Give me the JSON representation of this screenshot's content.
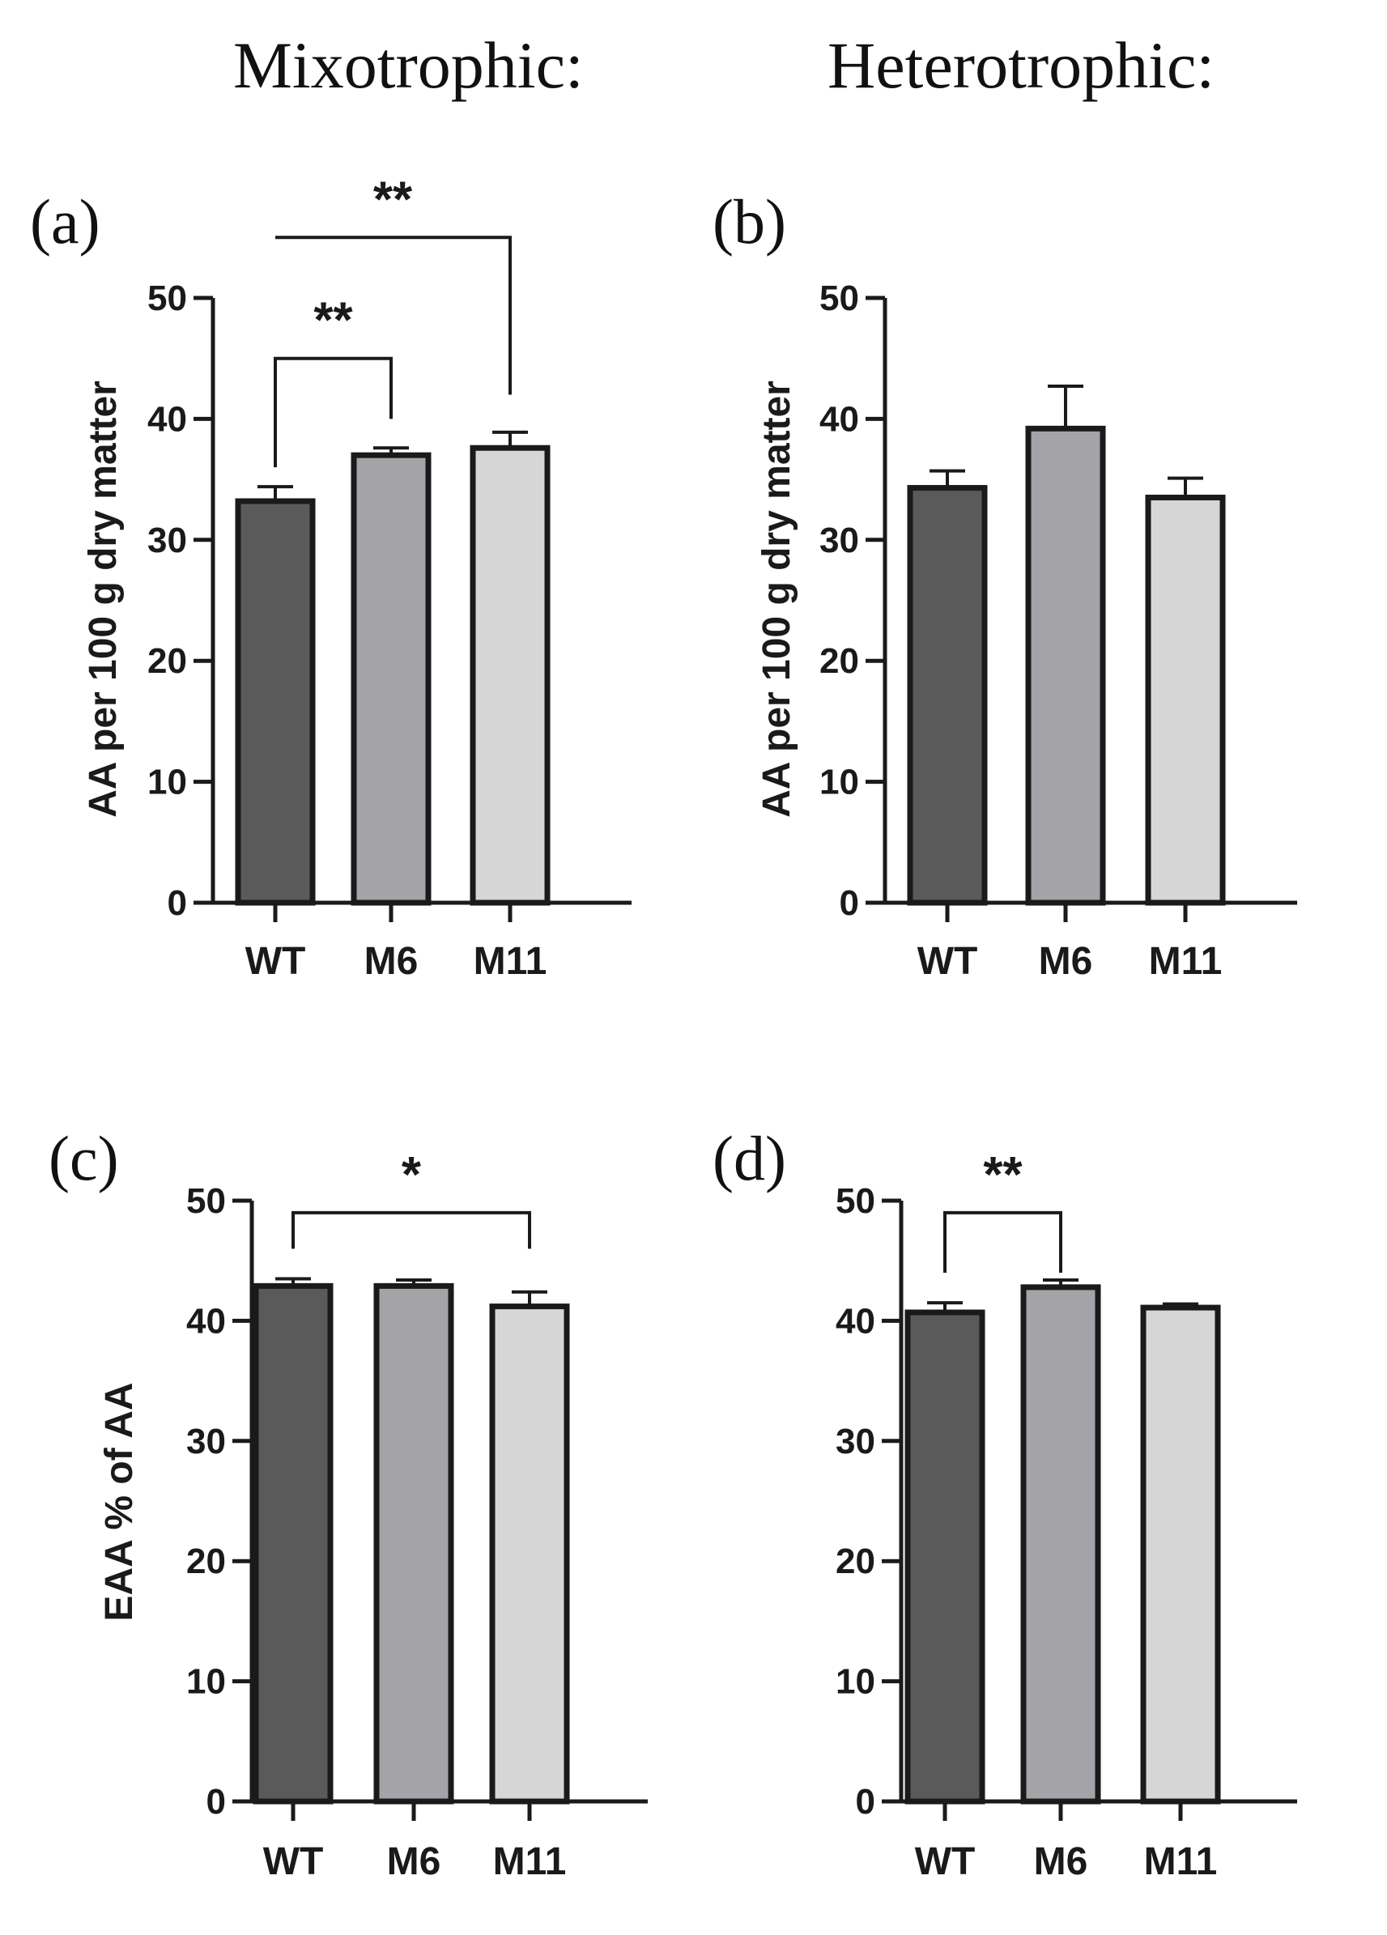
{
  "columns": {
    "left": "Mixotrophic:",
    "right": "Heterotrophic:"
  },
  "colors": {
    "WT": "#5a5a5a",
    "M6": "#a3a3a8",
    "M11": "#d6d6d6",
    "edge": "#1a1a1a"
  },
  "chart_data": [
    {
      "panel": "(a)",
      "type": "bar",
      "condition": "Mixotrophic",
      "categories": [
        "WT",
        "M6",
        "M11"
      ],
      "values": [
        33.2,
        37.0,
        37.6
      ],
      "errors": [
        1.2,
        0.6,
        1.3
      ],
      "ylabel": "AA per 100 g dry matter",
      "ylim": [
        0,
        50
      ],
      "yticks": [
        0,
        10,
        20,
        30,
        40,
        50
      ],
      "significance": [
        {
          "from": "WT",
          "to": "M6",
          "label": "**",
          "level": 45,
          "end_from": 36,
          "end_to": 40
        },
        {
          "from": "WT",
          "to": "M11",
          "label": "**",
          "level": 55,
          "end_from": 55,
          "end_to": 42
        }
      ]
    },
    {
      "panel": "(b)",
      "type": "bar",
      "condition": "Heterotrophic",
      "categories": [
        "WT",
        "M6",
        "M11"
      ],
      "values": [
        34.3,
        39.2,
        33.5
      ],
      "errors": [
        1.4,
        3.5,
        1.6
      ],
      "ylabel": "AA per 100 g dry matter",
      "ylim": [
        0,
        50
      ],
      "yticks": [
        0,
        10,
        20,
        30,
        40,
        50
      ],
      "significance": []
    },
    {
      "panel": "(c)",
      "type": "bar",
      "condition": "Mixotrophic",
      "categories": [
        "WT",
        "M6",
        "M11"
      ],
      "values": [
        42.9,
        42.9,
        41.2
      ],
      "errors": [
        0.6,
        0.5,
        1.2
      ],
      "ylabel": "EAA % of AA",
      "ylim": [
        0,
        50
      ],
      "yticks": [
        0,
        10,
        20,
        30,
        40,
        50
      ],
      "significance": [
        {
          "from": "WT",
          "to": "M11",
          "label": "*",
          "level": 49,
          "end_from": 46,
          "end_to": 46
        }
      ]
    },
    {
      "panel": "(d)",
      "type": "bar",
      "condition": "Heterotrophic",
      "categories": [
        "WT",
        "M6",
        "M11"
      ],
      "values": [
        40.7,
        42.8,
        41.1
      ],
      "errors": [
        0.8,
        0.6,
        0.3
      ],
      "ylabel": "",
      "ylim": [
        0,
        50
      ],
      "yticks": [
        0,
        10,
        20,
        30,
        40,
        50
      ],
      "significance": [
        {
          "from": "WT",
          "to": "M6",
          "label": "**",
          "level": 49,
          "end_from": 44,
          "end_to": 44
        }
      ]
    }
  ]
}
